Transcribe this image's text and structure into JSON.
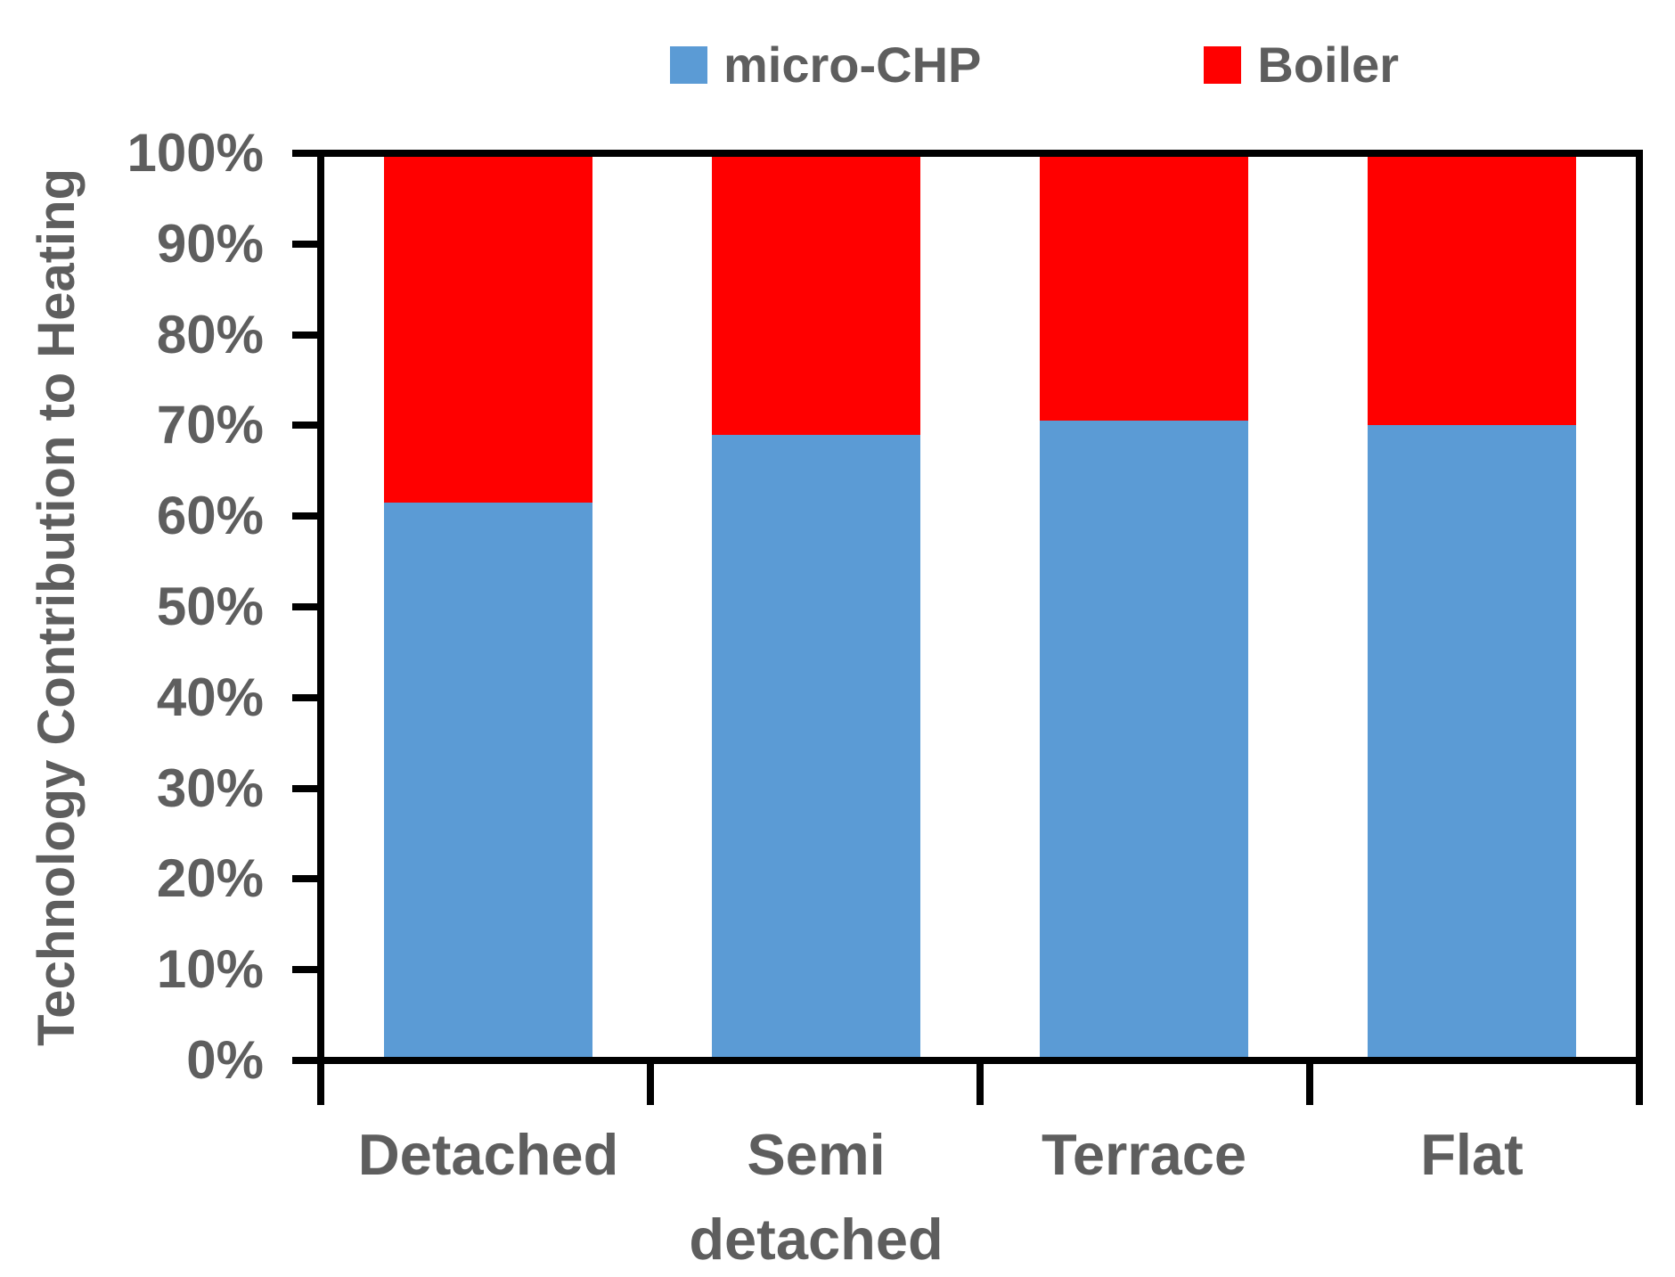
{
  "chart_data": {
    "type": "bar",
    "stacked": true,
    "title": "",
    "ylabel": "Technology Contribution to Heating",
    "xlabel": "",
    "categories": [
      "Detached",
      "Semi detached",
      "Terrace",
      "Flat"
    ],
    "series": [
      {
        "name": "micro-CHP",
        "color": "#5B9BD5",
        "values": [
          61.5,
          69.0,
          70.5,
          70.0
        ]
      },
      {
        "name": "Boiler",
        "color": "#FF0000",
        "values": [
          38.5,
          31.0,
          29.5,
          30.0
        ]
      }
    ],
    "ylim": [
      0,
      100
    ],
    "y_tick_labels": [
      "0%",
      "10%",
      "20%",
      "30%",
      "40%",
      "50%",
      "60%",
      "70%",
      "80%",
      "90%",
      "100%"
    ],
    "grid": false,
    "legend_position": "top-center"
  },
  "colors": {
    "axis": "#000000",
    "text": "#5E5E5E",
    "background": "#FFFFFF"
  }
}
